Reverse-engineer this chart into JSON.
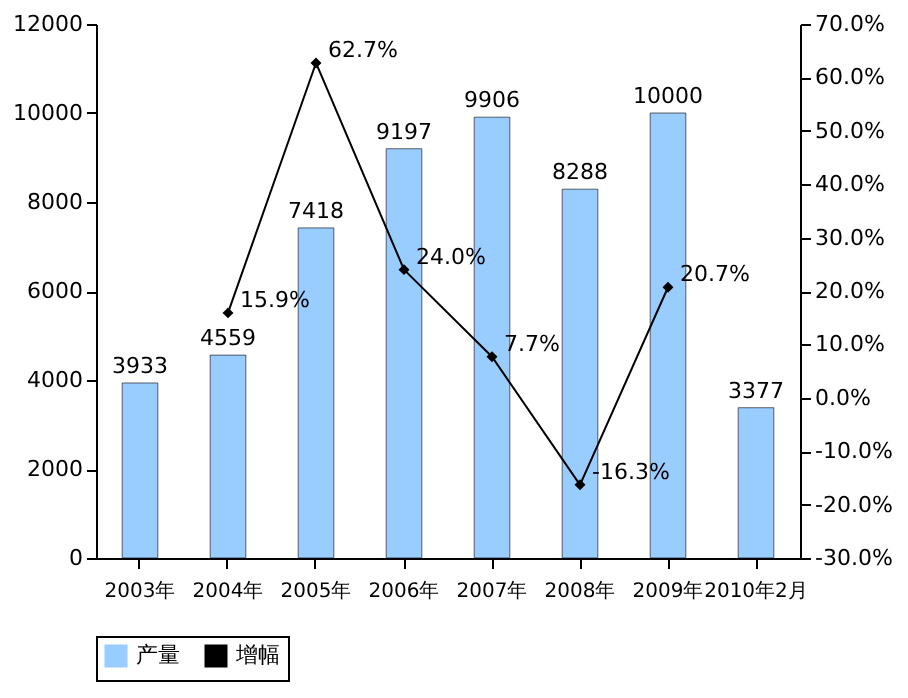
{
  "chart_data": {
    "type": "bar",
    "categories": [
      "2003年",
      "2004年",
      "2005年",
      "2006年",
      "2007年",
      "2008年",
      "2009年",
      "2010年2月"
    ],
    "series": [
      {
        "name": "产量",
        "color": "#99ccff",
        "values": [
          3933,
          4559,
          7418,
          9197,
          9906,
          8288,
          10000,
          3377
        ],
        "value_labels": [
          "3933",
          "4559",
          "7418",
          "9197",
          "9906",
          "8288",
          "10000",
          "3377"
        ]
      },
      {
        "name": "增幅",
        "type": "line",
        "axis": "y2",
        "color": "#000000",
        "values": [
          null,
          15.9,
          62.7,
          24.0,
          7.7,
          -16.3,
          20.7,
          null
        ],
        "value_labels": [
          null,
          "15.9%",
          "62.7%",
          "24.0%",
          "7.7%",
          "-16.3%",
          "20.7%",
          null
        ]
      }
    ],
    "ylim": [
      0,
      12000
    ],
    "yticks": [
      0,
      2000,
      4000,
      6000,
      8000,
      10000,
      12000
    ],
    "y2lim": [
      -30,
      70
    ],
    "y2ticks": [
      {
        "value": -30,
        "label": "-30.0%"
      },
      {
        "value": -20,
        "label": "-20.0%"
      },
      {
        "value": -10,
        "label": "-10.0%"
      },
      {
        "value": 0,
        "label": "0.0%"
      },
      {
        "value": 10,
        "label": "10.0%"
      },
      {
        "value": 20,
        "label": "20.0%"
      },
      {
        "value": 30,
        "label": "30.0%"
      },
      {
        "value": 40,
        "label": "40.0%"
      },
      {
        "value": 50,
        "label": "50.0%"
      },
      {
        "value": 60,
        "label": "60.0%"
      },
      {
        "value": 70,
        "label": "70.0%"
      }
    ],
    "grid": false,
    "legend": "bottom",
    "marker": "diamond",
    "line_style": "solid"
  }
}
